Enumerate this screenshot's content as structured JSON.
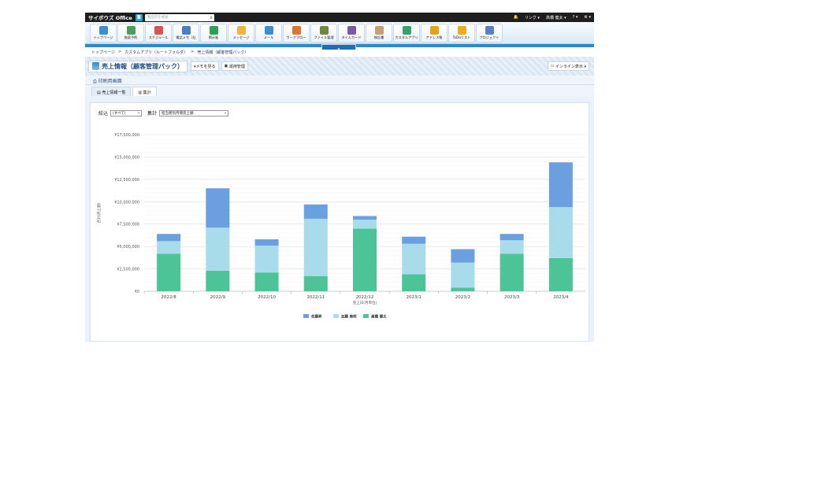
{
  "topbar": {
    "brand": "サイボウズ Office",
    "search_placeholder": "製品内を検索",
    "links_label": "リンク ▾",
    "user_label": "高橋 健太 ▾",
    "help_label": "? ▾",
    "settings_label": "⚙ ▾"
  },
  "apps": [
    {
      "label": "トップページ",
      "color": "#3b8ed0"
    },
    {
      "label": "施設予約",
      "color": "#4aa05a"
    },
    {
      "label": "スケジュール",
      "color": "#d9534f"
    },
    {
      "label": "電話メモ（社",
      "color": "#4a7fc1"
    },
    {
      "label": "掲示板",
      "color": "#2f9e57"
    },
    {
      "label": "メッセージ",
      "color": "#f0b43c"
    },
    {
      "label": "メール",
      "color": "#3b8ed0"
    },
    {
      "label": "ワークフロー",
      "color": "#e0752f"
    },
    {
      "label": "ファイル管理",
      "color": "#6c8a3a"
    },
    {
      "label": "タイムカード",
      "color": "#7a5aa8"
    },
    {
      "label": "報告書",
      "color": "#c4a072"
    },
    {
      "label": "カスタムアプリ",
      "color": "#35a26b"
    },
    {
      "label": "アドレス帳",
      "color": "#e3a21a"
    },
    {
      "label": "ToDoリスト",
      "color": "#f2a81d"
    },
    {
      "label": "プロジェクト",
      "color": "#5b7ec9"
    }
  ],
  "breadcrumb": [
    "トップページ",
    ">",
    "カスタムアプリ（ルートフォルダ）",
    ">",
    "売上情報（顧客管理パック）"
  ],
  "page": {
    "title": "売上情報（顧客管理パック）",
    "memo_button": "▾メモを見る",
    "admin_button": "運用管理",
    "inline_button": "インライン表示 ▾",
    "print_link": "印刷用画面"
  },
  "tabs": [
    {
      "label": "売上情報一覧",
      "active": false
    },
    {
      "label": "集計",
      "active": true
    }
  ],
  "filters": {
    "filter_label": "絞込",
    "filter_value": "(すべて)",
    "aggregate_label": "集計",
    "aggregate_value": "担当者別月間売上額"
  },
  "chart_data": {
    "type": "bar",
    "stacked": true,
    "categories": [
      "2022/8",
      "2022/9",
      "2022/10",
      "2022/11",
      "2022/12",
      "2023/1",
      "2023/2",
      "2023/3",
      "2023/4"
    ],
    "series": [
      {
        "name": "高橋 健太",
        "color": "#4cc497",
        "values": [
          4200000,
          2300000,
          2100000,
          1700000,
          7000000,
          1900000,
          400000,
          4200000,
          3700000
        ]
      },
      {
        "name": "加藤 美咲",
        "color": "#a8dcea",
        "values": [
          1400000,
          4800000,
          3000000,
          6400000,
          1000000,
          3400000,
          2800000,
          1500000,
          5700000
        ]
      },
      {
        "name": "佐藤昇",
        "color": "#6a9fe0",
        "values": [
          800000,
          4400000,
          700000,
          1600000,
          400000,
          800000,
          1500000,
          700000,
          5000000
        ]
      }
    ],
    "y_ticks": [
      "¥0",
      "¥2,500,000",
      "¥5,000,000",
      "¥7,500,000",
      "¥10,000,000",
      "¥12,500,000",
      "¥15,000,000",
      "¥17,500,000"
    ],
    "ylim": [
      0,
      17500000
    ],
    "xlabel": "売上日(月単位)",
    "ylabel": "合計(売上額)",
    "legend": [
      "佐藤昇",
      "加藤 美咲",
      "高橋 健太"
    ],
    "grid": true,
    "legend_position": "bottom"
  }
}
